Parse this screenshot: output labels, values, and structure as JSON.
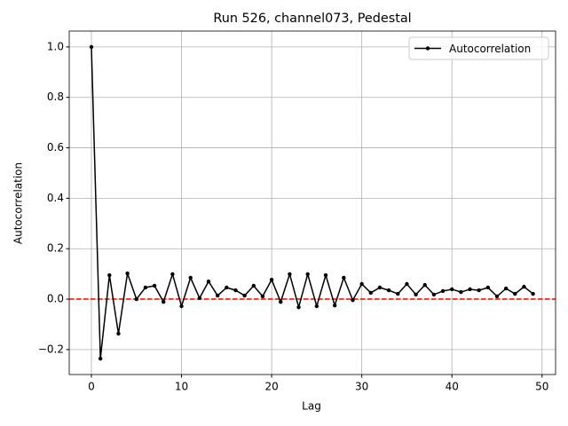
{
  "chart_data": {
    "type": "line",
    "title": "Run 526, channel073, Pedestal",
    "x_label": "Lag",
    "y_label": "Autocorrelation",
    "x": [
      0,
      1,
      2,
      3,
      4,
      5,
      6,
      7,
      8,
      9,
      10,
      11,
      12,
      13,
      14,
      15,
      16,
      17,
      18,
      19,
      20,
      21,
      22,
      23,
      24,
      25,
      26,
      27,
      28,
      29,
      30,
      31,
      32,
      33,
      34,
      35,
      36,
      37,
      38,
      39,
      40,
      41,
      42,
      43,
      44,
      45,
      46,
      47,
      48,
      49
    ],
    "series": [
      {
        "name": "Autocorrelation",
        "color": "#000000",
        "values": [
          1.0,
          -0.236,
          0.095,
          -0.137,
          0.102,
          0.0,
          0.046,
          0.053,
          -0.011,
          0.099,
          -0.028,
          0.085,
          0.004,
          0.07,
          0.014,
          0.046,
          0.035,
          0.014,
          0.053,
          0.011,
          0.077,
          -0.011,
          0.099,
          -0.032,
          0.099,
          -0.028,
          0.095,
          -0.025,
          0.085,
          -0.004,
          0.06,
          0.025,
          0.046,
          0.035,
          0.021,
          0.06,
          0.018,
          0.056,
          0.018,
          0.032,
          0.039,
          0.028,
          0.039,
          0.035,
          0.046,
          0.011,
          0.042,
          0.021,
          0.049,
          0.021
        ]
      }
    ],
    "hline": {
      "value": 0,
      "color": "#ff0000"
    },
    "xlim": [
      -2.46,
      51.5
    ],
    "ylim": [
      -0.299,
      1.063
    ],
    "xticks": [
      0,
      10,
      20,
      30,
      40,
      50
    ],
    "yticks": [
      {
        "value": -0.2,
        "label": "−0.2"
      },
      {
        "value": 0,
        "label": "0.0"
      },
      0.2,
      0.4,
      0.6,
      0.8,
      {
        "value": 1,
        "label": "1.0"
      }
    ],
    "grid": true,
    "legend": "upper right"
  }
}
